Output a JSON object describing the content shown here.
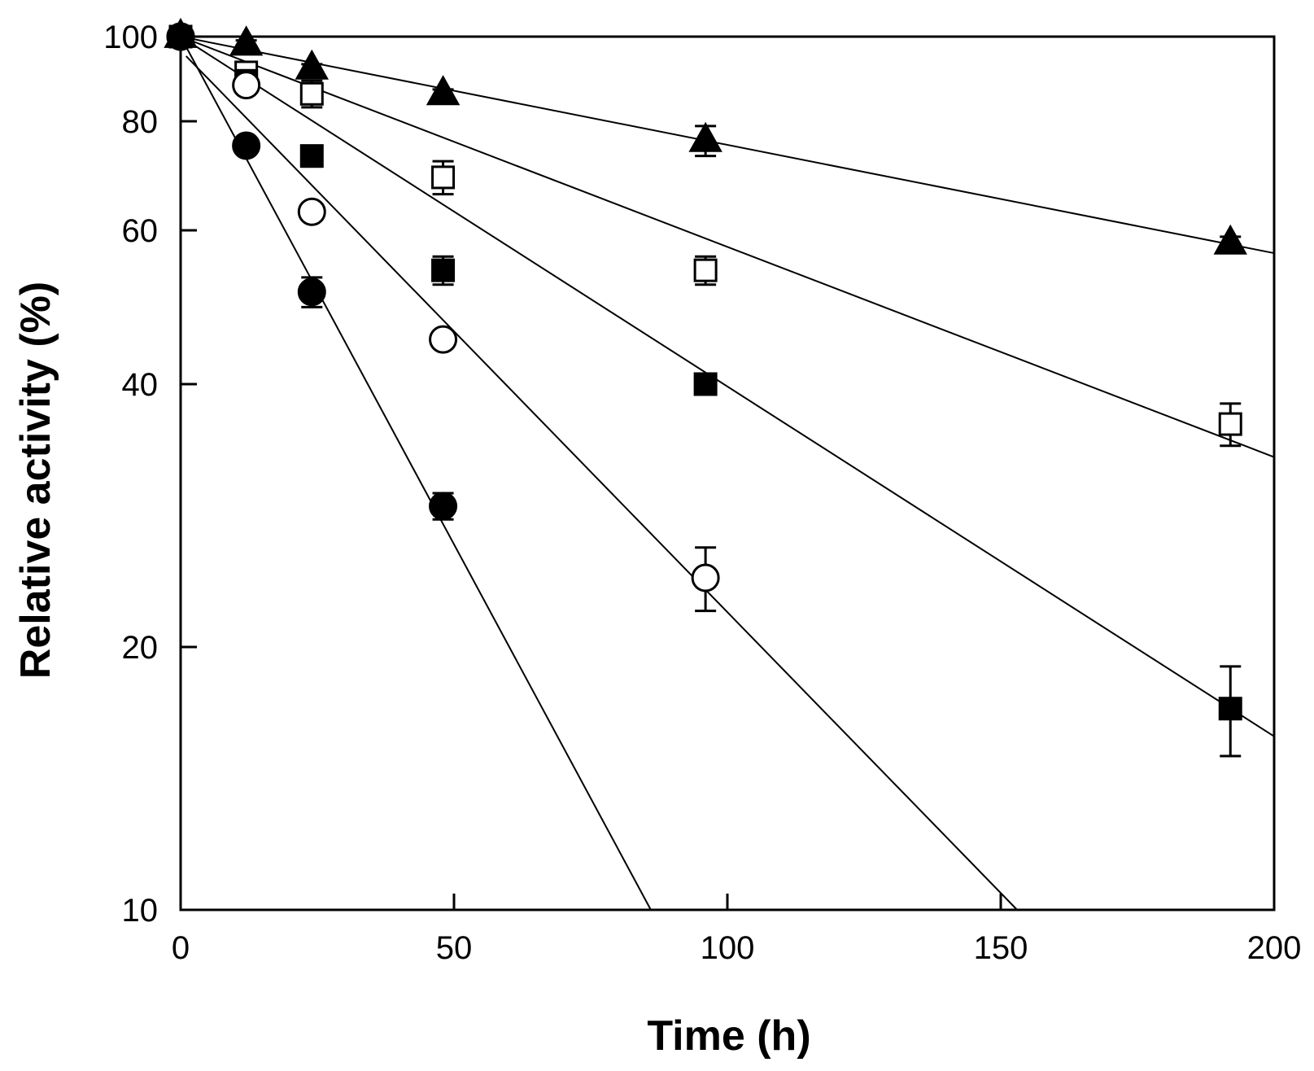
{
  "chart_data": {
    "type": "scatter",
    "title": "",
    "xlabel": "Time (h)",
    "ylabel": "Relative activity (%)",
    "xlim": [
      0,
      200
    ],
    "ylim": [
      10,
      100
    ],
    "yscale": "log",
    "grid": false,
    "legend": "none",
    "x_ticks": [
      0,
      50,
      100,
      150,
      200
    ],
    "x_tick_labels": [
      "0",
      "50",
      "100",
      "150",
      "200"
    ],
    "y_ticks": [
      10,
      20,
      40,
      60,
      80,
      100
    ],
    "y_tick_labels": [
      "10",
      "20",
      "40",
      "60",
      "80",
      "100"
    ],
    "series": [
      {
        "name": "filled triangles",
        "marker": "triangle-filled",
        "x": [
          0,
          12,
          24,
          48,
          96,
          192
        ],
        "y": [
          100,
          98,
          92,
          86,
          76,
          58
        ],
        "err": [
          0,
          1,
          1,
          1,
          3,
          1
        ],
        "fit": {
          "x0": 0,
          "y0": 100,
          "x1": 200,
          "y1": 56.5
        }
      },
      {
        "name": "open squares",
        "marker": "square-open",
        "x": [
          0,
          12,
          24,
          48,
          96,
          192
        ],
        "y": [
          100,
          91,
          86,
          69,
          54,
          36
        ],
        "err": [
          0,
          2,
          3,
          3,
          2,
          2
        ],
        "fit": {
          "x0": 0,
          "y0": 100,
          "x1": 200,
          "y1": 33
        }
      },
      {
        "name": "filled squares",
        "marker": "square-filled",
        "x": [
          0,
          12,
          24,
          48,
          96,
          192
        ],
        "y": [
          100,
          89,
          73,
          54,
          40,
          17
        ],
        "err": [
          0,
          1,
          2,
          2,
          1,
          2
        ],
        "fit": {
          "x0": 0,
          "y0": 100,
          "x1": 200,
          "y1": 15.8
        }
      },
      {
        "name": "open circles",
        "marker": "circle-open",
        "x": [
          0,
          12,
          24,
          48,
          96
        ],
        "y": [
          100,
          88,
          63,
          45,
          24
        ],
        "err": [
          0,
          1,
          1,
          1,
          2
        ],
        "fit": {
          "x0": 1,
          "y0": 95,
          "x1": 153,
          "y1": 10
        }
      },
      {
        "name": "filled circles",
        "marker": "circle-filled",
        "x": [
          0,
          12,
          24,
          48
        ],
        "y": [
          100,
          75,
          51,
          29
        ],
        "err": [
          0,
          1,
          2,
          1
        ],
        "fit": {
          "x0": 0,
          "y0": 100,
          "x1": 86,
          "y1": 10
        }
      }
    ]
  }
}
